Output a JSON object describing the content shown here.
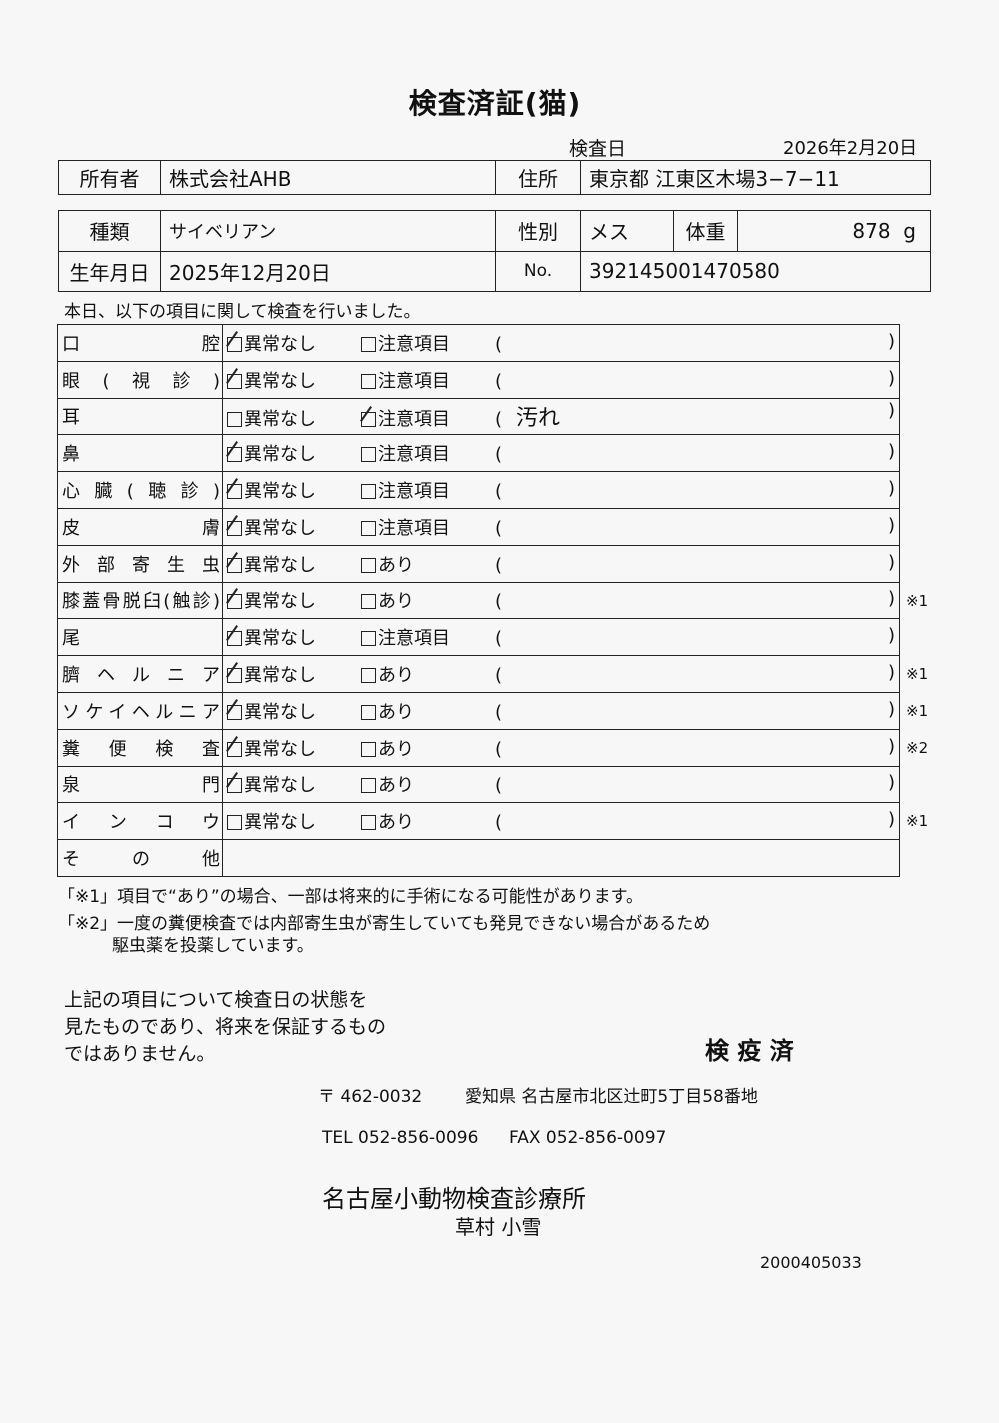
{
  "title": "検査済証(猫)",
  "exam_date_label": "検査日",
  "exam_date": "2026年2月20日",
  "owner": {
    "label": "所有者",
    "value": "株式会社AHB",
    "address_label": "住所",
    "address": "東京都 江東区木場3−7−11"
  },
  "pet": {
    "breed_label": "種類",
    "breed": "サイベリアン",
    "sex_label": "性別",
    "sex": "メス",
    "weight_label": "体重",
    "weight": "878",
    "weight_unit": "g",
    "birth_label": "生年月日",
    "birth": "2025年12月20日",
    "no_label": "No.",
    "no": "392145001470580"
  },
  "intro": "本日、以下の項目に関して検査を行いました。",
  "rows": [
    {
      "name": "口腔",
      "ok": "異常なし",
      "alt": "注意項目",
      "ok_checked": true,
      "alt_checked": false,
      "note": "",
      "mark": ""
    },
    {
      "name": "眼(視診)",
      "ok": "異常なし",
      "alt": "注意項目",
      "ok_checked": true,
      "alt_checked": false,
      "note": "",
      "mark": ""
    },
    {
      "name": "耳",
      "ok": "異常なし",
      "alt": "注意項目",
      "ok_checked": false,
      "alt_checked": true,
      "note": "汚れ",
      "mark": ""
    },
    {
      "name": "鼻",
      "ok": "異常なし",
      "alt": "注意項目",
      "ok_checked": true,
      "alt_checked": false,
      "note": "",
      "mark": ""
    },
    {
      "name": "心臓(聴診)",
      "ok": "異常なし",
      "alt": "注意項目",
      "ok_checked": true,
      "alt_checked": false,
      "note": "",
      "mark": ""
    },
    {
      "name": "皮膚",
      "ok": "異常なし",
      "alt": "注意項目",
      "ok_checked": true,
      "alt_checked": false,
      "note": "",
      "mark": ""
    },
    {
      "name": "外部寄生虫",
      "ok": "異常なし",
      "alt": "あり",
      "ok_checked": true,
      "alt_checked": false,
      "note": "",
      "mark": ""
    },
    {
      "name": "膝蓋骨脱臼(触診)",
      "ok": "異常なし",
      "alt": "あり",
      "ok_checked": true,
      "alt_checked": false,
      "note": "",
      "mark": "※1"
    },
    {
      "name": "尾",
      "ok": "異常なし",
      "alt": "注意項目",
      "ok_checked": true,
      "alt_checked": false,
      "note": "",
      "mark": ""
    },
    {
      "name": "臍ヘルニア",
      "ok": "異常なし",
      "alt": "あり",
      "ok_checked": true,
      "alt_checked": false,
      "note": "",
      "mark": "※1"
    },
    {
      "name": "ソケイヘルニア",
      "ok": "異常なし",
      "alt": "あり",
      "ok_checked": true,
      "alt_checked": false,
      "note": "",
      "mark": "※1"
    },
    {
      "name": "糞便検査",
      "ok": "異常なし",
      "alt": "あり",
      "ok_checked": true,
      "alt_checked": false,
      "note": "",
      "mark": "※2"
    },
    {
      "name": "泉門",
      "ok": "異常なし",
      "alt": "あり",
      "ok_checked": true,
      "alt_checked": false,
      "note": "",
      "mark": ""
    },
    {
      "name": "インコウ",
      "ok": "異常なし",
      "alt": "あり",
      "ok_checked": false,
      "alt_checked": false,
      "note": "",
      "mark": "※1"
    }
  ],
  "other_label": "その他",
  "footnotes": [
    "「※1」項目で“あり”の場合、一部は将来的に手術になる可能性があります。",
    "「※2」一度の糞便検査では内部寄生虫が寄生していても発見できない場合があるため",
    "駆虫薬を投薬しています。"
  ],
  "disclaimer": [
    "上記の項目について検査日の状態を",
    "見たものであり、将来を保証するもの",
    "ではありません。"
  ],
  "stamp": "検 疫 済",
  "clinic": {
    "postal": "〒 462-0032",
    "address": "愛知県 名古屋市北区辻町5丁目58番地",
    "tel": "TEL 052-856-0096",
    "fax": "FAX 052-856-0097",
    "name": "名古屋小動物検査診療所",
    "doctor": "草村 小雪",
    "code": "2000405033"
  }
}
